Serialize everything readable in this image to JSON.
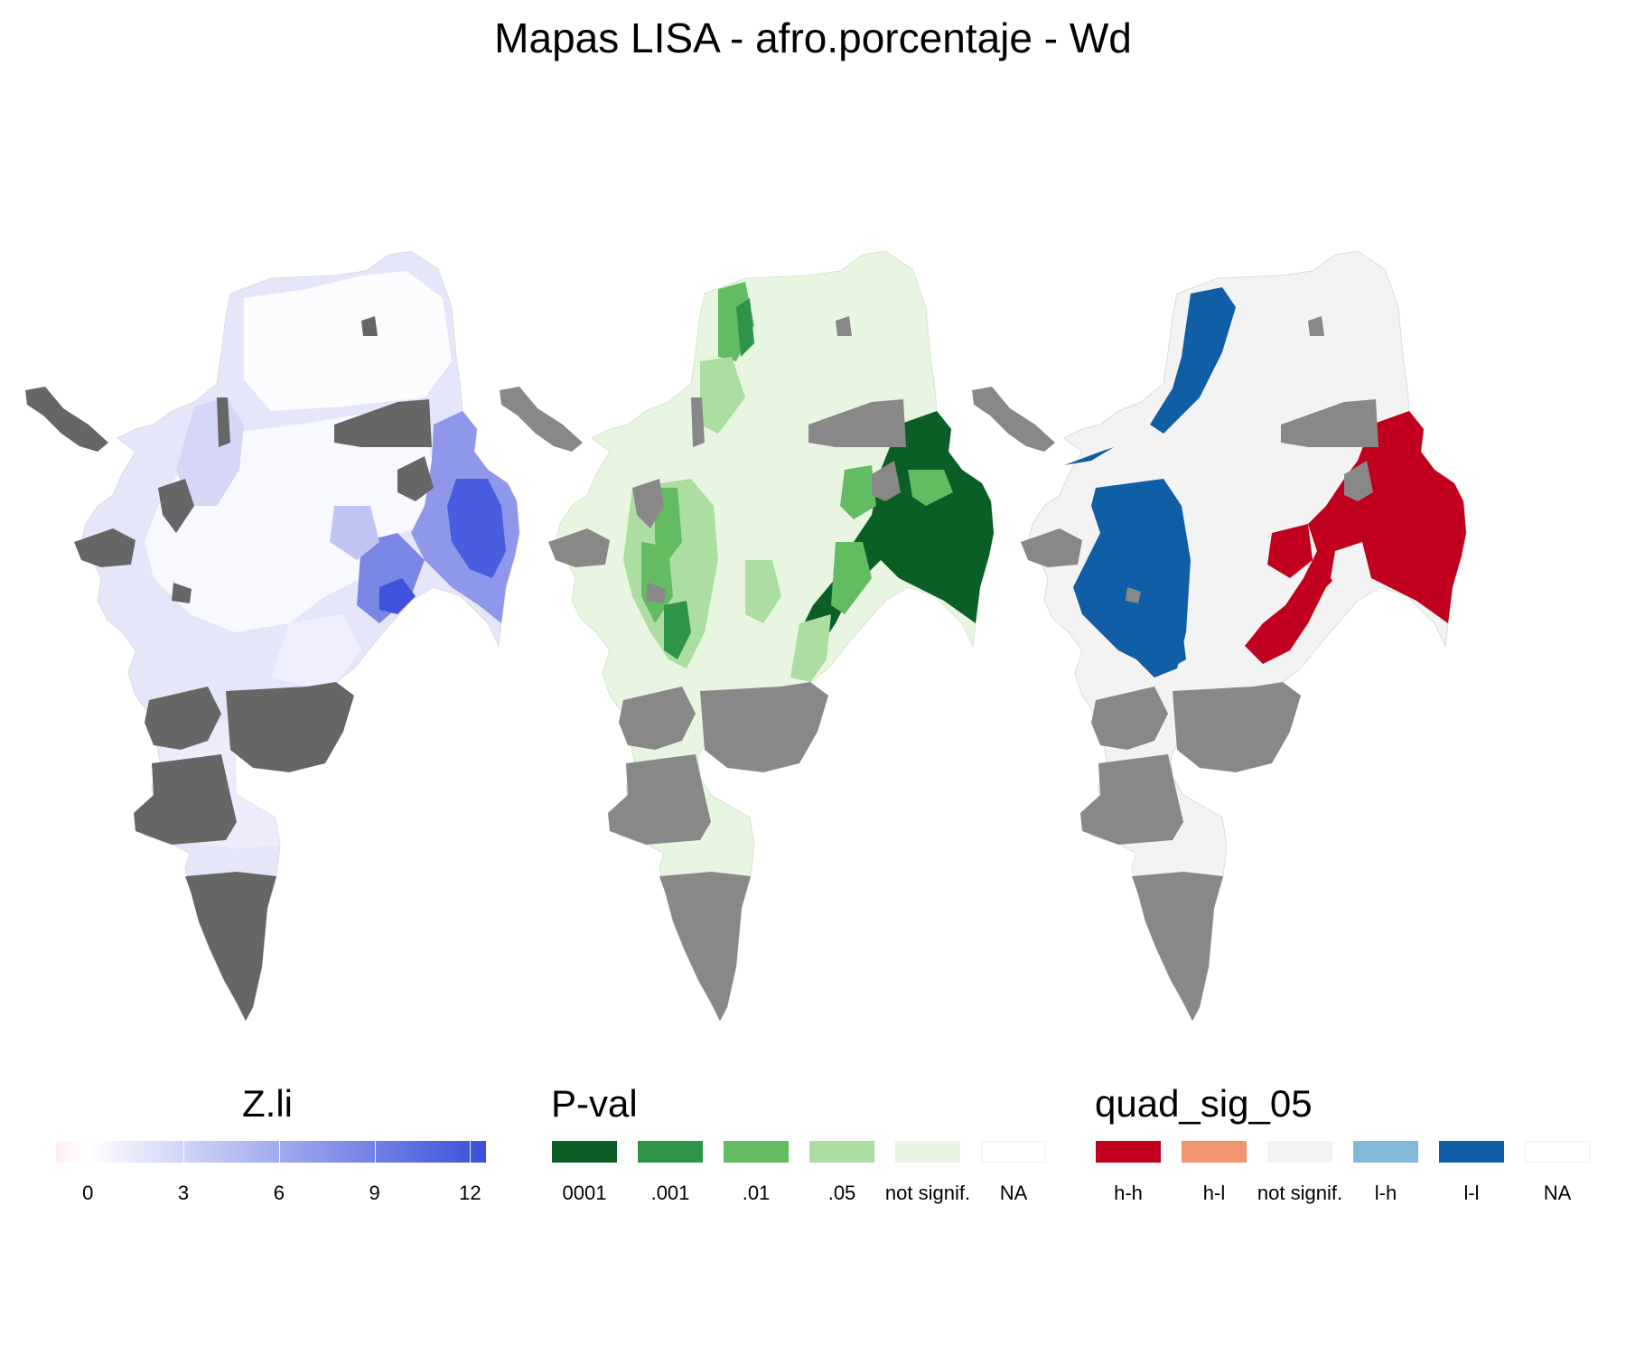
{
  "title": "Mapas LISA - afro.porcentaje - Wd",
  "colors": {
    "na_dark": "#666666",
    "na_mid": "#888888",
    "zli_low": "#fff0f0",
    "zli_zero": "#ffffff",
    "zli_high": "#3a4fdb",
    "p_0001": "#0b5e26",
    "p_001": "#2e9447",
    "p_01": "#63bb62",
    "p_05": "#abdea0",
    "p_ns": "#e7f5e1",
    "q_hh": "#c0001e",
    "q_hl": "#f1956f",
    "q_ns": "#f3f3f3",
    "q_lh": "#82b8d8",
    "q_ll": "#0f5ea6"
  },
  "legends": {
    "zli": {
      "title": "Z.li",
      "ticks": [
        "0",
        "3",
        "6",
        "9",
        "12"
      ],
      "tick_values": [
        0,
        3,
        6,
        9,
        12
      ],
      "range": [
        -1,
        12.5
      ]
    },
    "pval": {
      "title": "P-val",
      "items": [
        {
          "label": "0001",
          "color": "#0b5e26"
        },
        {
          "label": ".001",
          "color": "#2e9447"
        },
        {
          "label": ".01",
          "color": "#63bb62"
        },
        {
          "label": ".05",
          "color": "#abdea0"
        },
        {
          "label": "not signif.",
          "color": "#e7f5e1"
        },
        {
          "label": "NA",
          "color": "#ffffff"
        }
      ]
    },
    "quad": {
      "title": "quad_sig_05",
      "items": [
        {
          "label": "h-h",
          "color": "#c0001e"
        },
        {
          "label": "h-l",
          "color": "#f1956f"
        },
        {
          "label": "not signif.",
          "color": "#f3f3f3"
        },
        {
          "label": "l-h",
          "color": "#82b8d8"
        },
        {
          "label": "l-l",
          "color": "#0f5ea6"
        },
        {
          "label": "NA",
          "color": "#ffffff"
        }
      ]
    }
  }
}
